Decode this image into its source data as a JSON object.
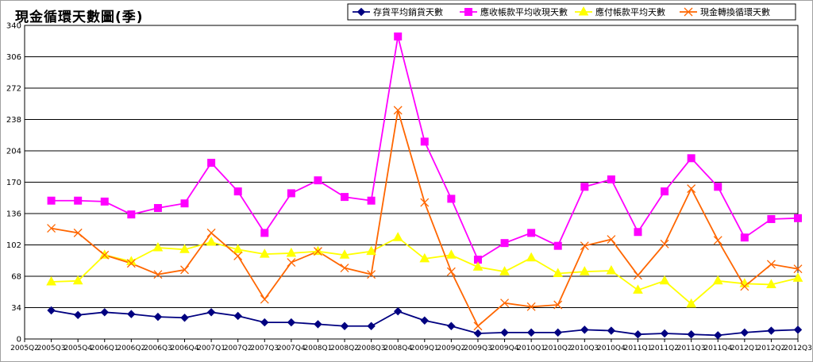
{
  "chart_data": {
    "type": "line",
    "title": "現金循環天數圖(季)",
    "xlabel": "",
    "ylabel": "",
    "ylim": [
      0,
      340
    ],
    "yticks": [
      0,
      34,
      68,
      102,
      136,
      170,
      204,
      238,
      272,
      306,
      340
    ],
    "grid": true,
    "legend": "top-right",
    "categories": [
      "2005Q2",
      "2005Q3",
      "2005Q4",
      "2006Q1",
      "2006Q2",
      "2006Q3",
      "2006Q4",
      "2007Q1",
      "2007Q2",
      "2007Q3",
      "2007Q4",
      "2008Q1",
      "2008Q2",
      "2008Q3",
      "2008Q4",
      "2009Q1",
      "2009Q2",
      "2009Q3",
      "2009Q4",
      "2010Q1",
      "2010Q2",
      "2010Q3",
      "2010Q4",
      "2011Q1",
      "2011Q2",
      "2011Q3",
      "2011Q4",
      "2012Q1",
      "2012Q2",
      "2012Q3"
    ],
    "series": [
      {
        "name": "存貨平均銷貨天數",
        "color": "#000080",
        "marker": "diamond",
        "values": [
          null,
          31,
          26,
          29,
          27,
          24,
          23,
          29,
          25,
          18,
          18,
          16,
          14,
          14,
          30,
          20,
          14,
          6,
          7,
          7,
          7,
          10,
          9,
          5,
          6,
          5,
          4,
          7,
          9,
          10
        ]
      },
      {
        "name": "應收帳款平均收現天數",
        "color": "#ff00ff",
        "marker": "square",
        "values": [
          null,
          150,
          150,
          149,
          135,
          142,
          147,
          191,
          160,
          115,
          158,
          172,
          154,
          150,
          328,
          214,
          152,
          86,
          104,
          115,
          101,
          165,
          173,
          116,
          160,
          196,
          165,
          110,
          130,
          131
        ]
      },
      {
        "name": "應付帳款平均天數",
        "color": "#ffff00",
        "marker": "triangle",
        "values": [
          null,
          62,
          63,
          91,
          84,
          99,
          97,
          105,
          97,
          92,
          93,
          95,
          91,
          95,
          110,
          87,
          91,
          78,
          73,
          88,
          71,
          73,
          74,
          53,
          63,
          38,
          63,
          60,
          59,
          66
        ]
      },
      {
        "name": "現金轉換循環天數",
        "color": "#ff6600",
        "marker": "x",
        "values": [
          null,
          120,
          115,
          91,
          82,
          70,
          75,
          115,
          90,
          43,
          83,
          95,
          77,
          70,
          248,
          148,
          73,
          14,
          39,
          35,
          37,
          101,
          108,
          69,
          103,
          163,
          107,
          57,
          81,
          76
        ]
      }
    ]
  }
}
